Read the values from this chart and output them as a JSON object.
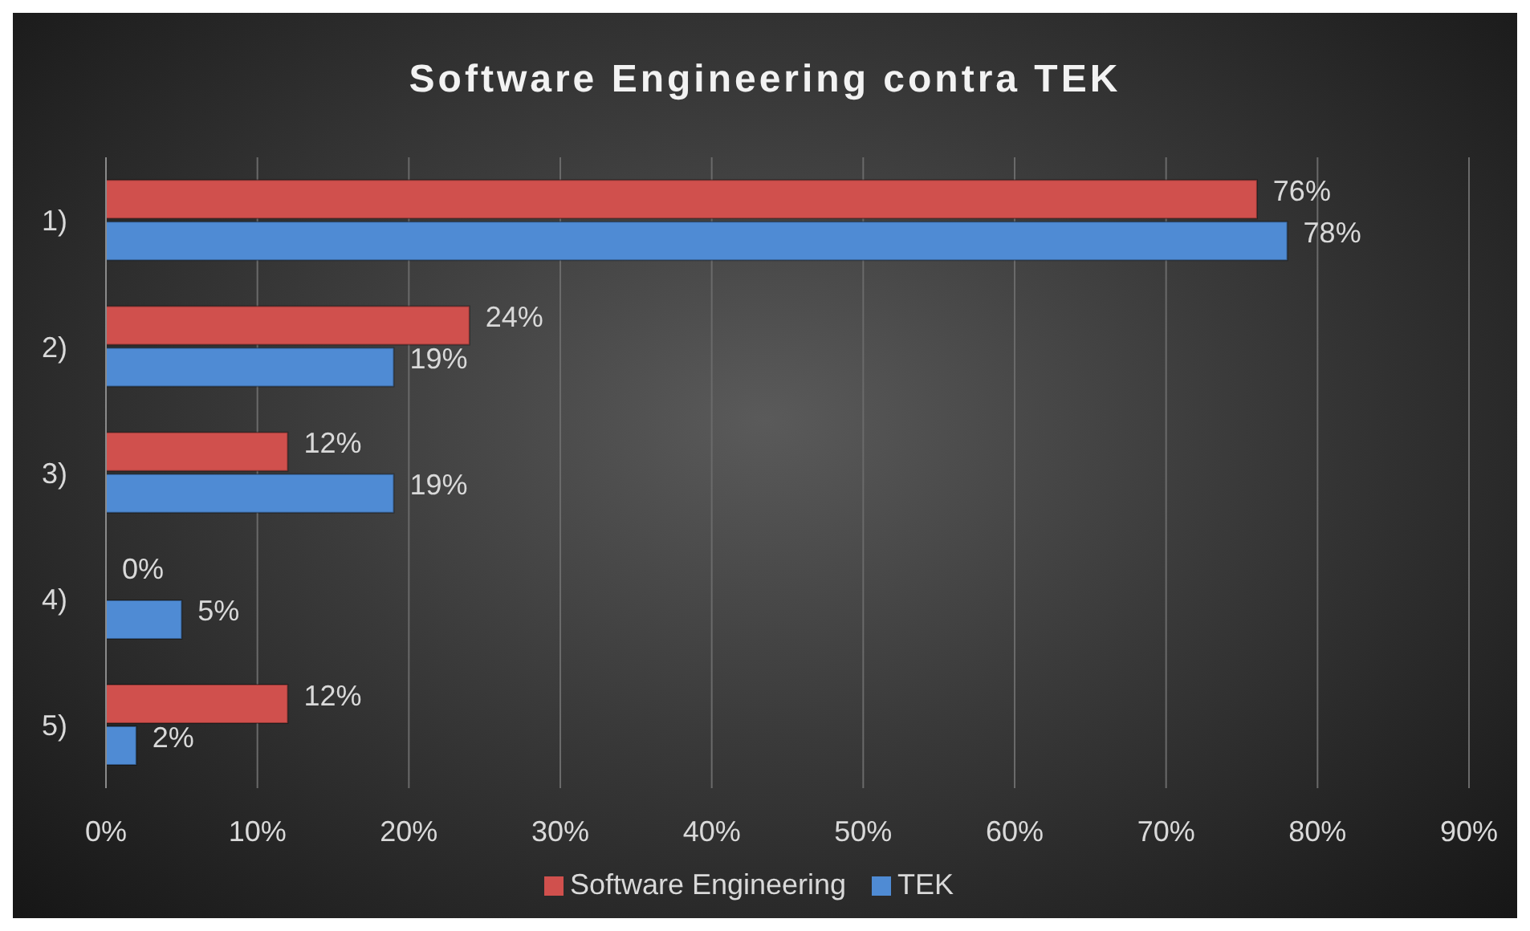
{
  "chart_data": {
    "type": "bar",
    "orientation": "horizontal",
    "title": "Software Engineering contra TEK",
    "categories": [
      "1)",
      "2)",
      "3)",
      "4)",
      "5)"
    ],
    "series": [
      {
        "name": "Software Engineering",
        "color": "#d0504d",
        "values": [
          76,
          24,
          12,
          0,
          12
        ],
        "value_labels": [
          "76%",
          "24%",
          "12%",
          "0%",
          "12%"
        ]
      },
      {
        "name": "TEK",
        "color": "#4f8bd4",
        "values": [
          78,
          19,
          19,
          5,
          2
        ],
        "value_labels": [
          "78%",
          "19%",
          "19%",
          "5%",
          "2%"
        ]
      }
    ],
    "xlim": [
      0,
      90
    ],
    "xticks": [
      {
        "value": 0,
        "label": "0%"
      },
      {
        "value": 10,
        "label": "10%"
      },
      {
        "value": 20,
        "label": "20%"
      },
      {
        "value": 30,
        "label": "30%"
      },
      {
        "value": 40,
        "label": "40%"
      },
      {
        "value": 50,
        "label": "50%"
      },
      {
        "value": 60,
        "label": "60%"
      },
      {
        "value": 70,
        "label": "70%"
      },
      {
        "value": 80,
        "label": "80%"
      },
      {
        "value": 90,
        "label": "90%"
      }
    ],
    "grid": "x",
    "legend": "bottom"
  }
}
